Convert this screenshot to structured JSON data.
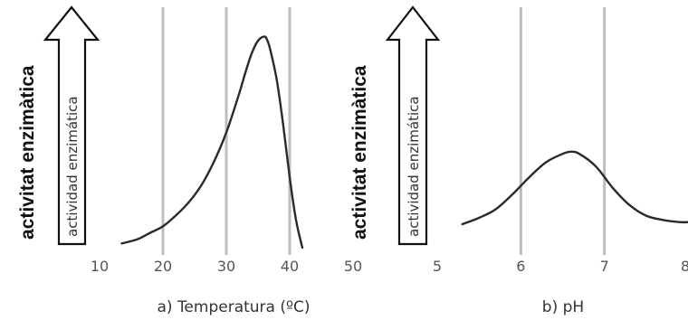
{
  "chart_data": [
    {
      "type": "line",
      "caption": "a) Temperatura (ºC)",
      "ylabel": "activitat enzimàtica",
      "arrow_label": "actividad enzimática",
      "xlim": [
        10,
        50
      ],
      "xticks": [
        "10",
        "20",
        "30",
        "40",
        "50"
      ],
      "grid_x": [
        20,
        30,
        40
      ],
      "grid": true,
      "series": [
        {
          "x": [
            13.5,
            16,
            18,
            20,
            22,
            24,
            26,
            28,
            30,
            32,
            33,
            34,
            35,
            36,
            36.5,
            37,
            38,
            39,
            40,
            41,
            42
          ],
          "y": [
            0.02,
            0.04,
            0.07,
            0.1,
            0.15,
            0.21,
            0.29,
            0.4,
            0.54,
            0.72,
            0.82,
            0.91,
            0.97,
            0.99,
            0.97,
            0.92,
            0.78,
            0.57,
            0.33,
            0.13,
            0.0
          ]
        }
      ]
    },
    {
      "type": "line",
      "caption": "b) pH",
      "ylabel": "activitat enzimàtica",
      "arrow_label": "actividad enzimática",
      "xlim": [
        5,
        8
      ],
      "xticks": [
        "5",
        "6",
        "7",
        "8"
      ],
      "grid_x": [
        6,
        7
      ],
      "grid": true,
      "series": [
        {
          "x": [
            5.3,
            5.5,
            5.7,
            5.9,
            6.1,
            6.3,
            6.5,
            6.6,
            6.7,
            6.9,
            7.1,
            7.3,
            7.5,
            7.7,
            7.9,
            8.0
          ],
          "y": [
            0.11,
            0.14,
            0.18,
            0.25,
            0.33,
            0.4,
            0.44,
            0.45,
            0.44,
            0.38,
            0.28,
            0.2,
            0.15,
            0.13,
            0.12,
            0.12
          ]
        }
      ]
    }
  ]
}
